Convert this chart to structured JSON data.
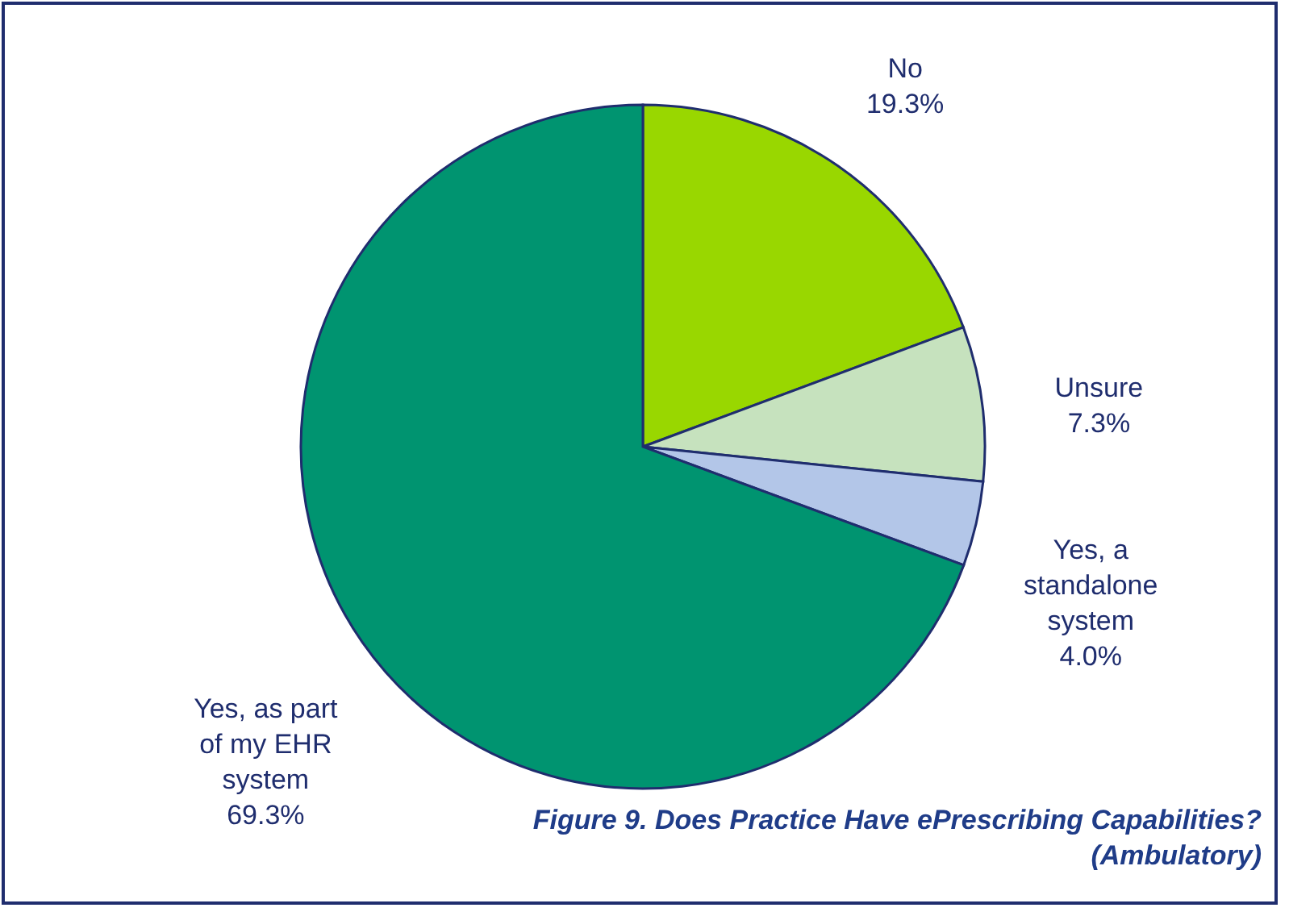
{
  "chart_data": {
    "type": "pie",
    "title": "Figure 9. Does Practice Have ePrescribing Capabilities? (Ambulatory)",
    "categories": [
      "No",
      "Unsure",
      "Yes, a standalone system",
      "Yes, as part of my EHR system"
    ],
    "values": [
      19.3,
      7.3,
      4.0,
      69.3
    ],
    "colors": [
      "#99d700",
      "#c6e2be",
      "#b3c6e8",
      "#009470"
    ],
    "value_labels": [
      "19.3%",
      "7.3%",
      "4.0%",
      "69.3%"
    ]
  }
}
